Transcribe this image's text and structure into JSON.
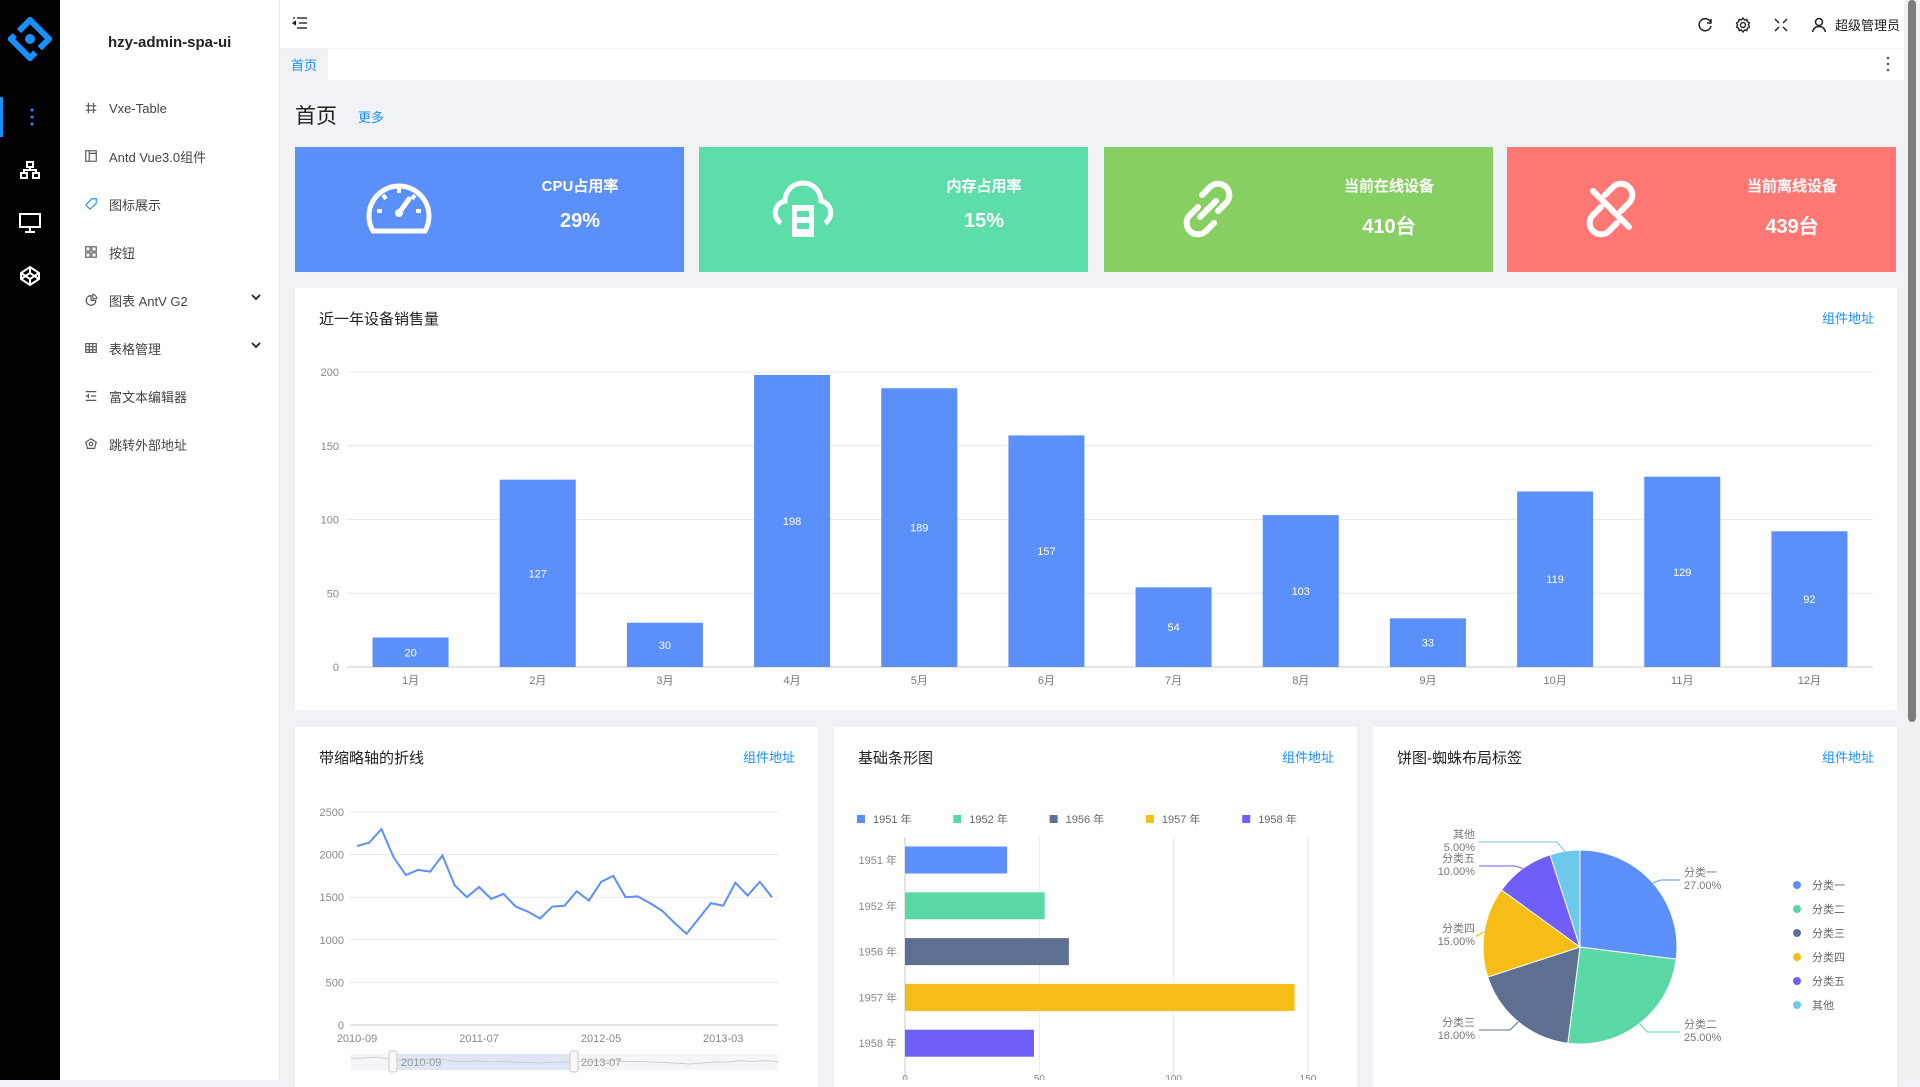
{
  "app": {
    "title": "hzy-admin-spa-ui",
    "user": "超级管理员"
  },
  "rail": {
    "icons": [
      "more-vertical-icon",
      "cluster-icon",
      "desktop-icon",
      "codepen-icon"
    ]
  },
  "menu": {
    "items": [
      {
        "label": "Vxe-Table",
        "icon": "number-icon"
      },
      {
        "label": "Antd Vue3.0组件",
        "icon": "layout-icon"
      },
      {
        "label": "图标展示",
        "icon": "tag-icon"
      },
      {
        "label": "按钮",
        "icon": "appstore-icon"
      },
      {
        "label": "图表 AntV G2",
        "icon": "pie-chart-icon",
        "expandable": true
      },
      {
        "label": "表格管理",
        "icon": "table-icon",
        "expandable": true
      },
      {
        "label": "富文本编辑器",
        "icon": "editor-icon"
      },
      {
        "label": "跳转外部地址",
        "icon": "external-icon"
      }
    ]
  },
  "tabs": [
    {
      "label": "首页",
      "active": true
    }
  ],
  "page": {
    "title": "首页",
    "more": "更多"
  },
  "stats": [
    {
      "label": "CPU占用率",
      "value": "29%",
      "color": "#5b8ff9",
      "icon": "dashboard-icon"
    },
    {
      "label": "内存占用率",
      "value": "15%",
      "color": "#5ddda8",
      "icon": "cloud-server-icon"
    },
    {
      "label": "当前在线设备",
      "value": "410台",
      "color": "#87cf63",
      "icon": "link-icon"
    },
    {
      "label": "当前离线设备",
      "value": "439台",
      "color": "#ff7873",
      "icon": "disconnect-icon"
    }
  ],
  "link_label": "组件地址",
  "chart_data": [
    {
      "type": "bar",
      "title": "近一年设备销售量",
      "categories": [
        "1月",
        "2月",
        "3月",
        "4月",
        "5月",
        "6月",
        "7月",
        "8月",
        "9月",
        "10月",
        "11月",
        "12月"
      ],
      "values": [
        20,
        127,
        30,
        198,
        189,
        157,
        54,
        103,
        33,
        119,
        129,
        92
      ],
      "ylim": [
        0,
        200
      ],
      "yticks": [
        0,
        50,
        100,
        150,
        200
      ],
      "color": "#5b8ff9",
      "grid": true
    },
    {
      "type": "line",
      "title": "带缩略轴的折线",
      "x": [
        "2010-09",
        "2010-10",
        "2010-11",
        "2010-12",
        "2011-01",
        "2011-02",
        "2011-03",
        "2011-04",
        "2011-05",
        "2011-06",
        "2011-07",
        "2011-08",
        "2011-09",
        "2011-10",
        "2011-11",
        "2011-12",
        "2012-01",
        "2012-02",
        "2012-03",
        "2012-04",
        "2012-05",
        "2012-06",
        "2012-07",
        "2012-08",
        "2012-09",
        "2012-10",
        "2012-11",
        "2012-12",
        "2013-01",
        "2013-02",
        "2013-03",
        "2013-04",
        "2013-05",
        "2013-06",
        "2013-07"
      ],
      "values": [
        2100,
        2140,
        2300,
        1970,
        1760,
        1820,
        1800,
        1990,
        1640,
        1500,
        1620,
        1480,
        1540,
        1390,
        1330,
        1250,
        1390,
        1400,
        1570,
        1460,
        1680,
        1750,
        1500,
        1510,
        1430,
        1340,
        1200,
        1070,
        1250,
        1430,
        1400,
        1670,
        1520,
        1680,
        1500
      ],
      "xticks": [
        "2010-09",
        "2011-07",
        "2012-05",
        "2013-03"
      ],
      "ylim": [
        0,
        2500
      ],
      "yticks": [
        0,
        500,
        1000,
        1500,
        2000,
        2500
      ],
      "slider": {
        "start": "2010-09",
        "end": "2013-07"
      },
      "color": "#5b8ff9"
    },
    {
      "type": "bar",
      "orientation": "horizontal",
      "title": "基础条形图",
      "categories": [
        "1951 年",
        "1952 年",
        "1956 年",
        "1957 年",
        "1958 年"
      ],
      "values": [
        38,
        52,
        61,
        145,
        48
      ],
      "xlim": [
        0,
        150
      ],
      "xticks": [
        0,
        50,
        100,
        150
      ],
      "colors": [
        "#5b8ff9",
        "#5ad8a6",
        "#5d7092",
        "#f6bd16",
        "#6f5ef9"
      ],
      "legend": "top"
    },
    {
      "type": "pie",
      "title": "饼图-蜘蛛布局标签",
      "series": [
        {
          "name": "分类一",
          "value": 27,
          "label": "27.00%"
        },
        {
          "name": "分类二",
          "value": 25,
          "label": "25.00%"
        },
        {
          "name": "分类三",
          "value": 18,
          "label": "18.00%"
        },
        {
          "name": "分类四",
          "value": 15,
          "label": "15.00%"
        },
        {
          "name": "分类五",
          "value": 10,
          "label": "10.00%"
        },
        {
          "name": "其他",
          "value": 5,
          "label": "5.00%"
        }
      ],
      "colors": [
        "#5b8ff9",
        "#5ad8a6",
        "#5d7092",
        "#f6bd16",
        "#6f5ef9",
        "#6dc8ec"
      ],
      "legend": "right"
    }
  ]
}
